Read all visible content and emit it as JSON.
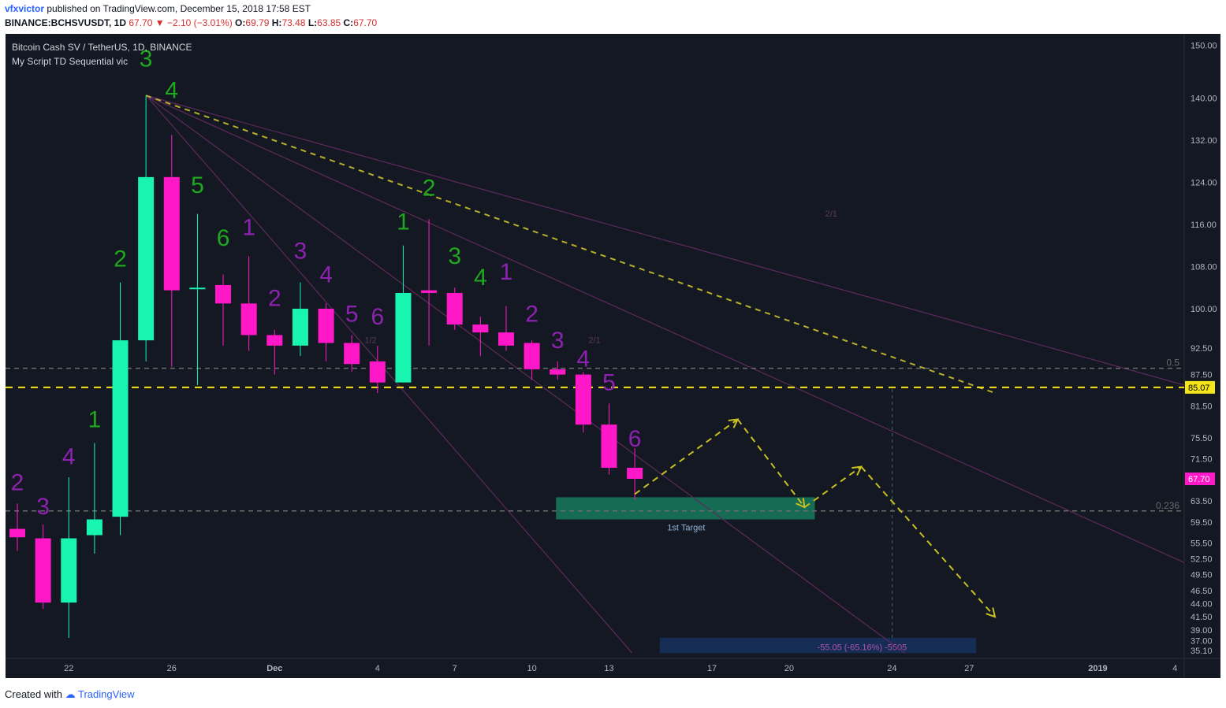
{
  "header": {
    "username": "vfxvictor",
    "published_text": "published on TradingView.com, December 15, 2018 17:58 EST",
    "symbol": "BINANCE:BCHSVUSDT, 1D",
    "last": "67.70",
    "change": "−2.10 (−3.01%)",
    "o_label": "O:",
    "o": "69.79",
    "h_label": "H:",
    "h": "73.48",
    "l_label": "L:",
    "l": "63.85",
    "c_label": "C:",
    "c": "67.70"
  },
  "legend": {
    "title": "Bitcoin Cash SV / TetherUS, 1D, BINANCE",
    "indicator": "My Script TD Sequential vic"
  },
  "footer": {
    "created_with": "Created with",
    "brand": "TradingView"
  },
  "colors": {
    "bg": "#141823",
    "up": "#19f5b0",
    "down": "#ff18c8",
    "td_green": "#1ea81e",
    "td_purple": "#8e22b0",
    "hline": "#f5e61a",
    "fan": "#5e2a5c"
  },
  "chart_data": {
    "type": "candlestick",
    "y_axis": {
      "range": [
        34.5,
        151.0
      ],
      "ticks": [
        "150.00",
        "140.00",
        "132.00",
        "124.00",
        "116.00",
        "108.00",
        "100.00",
        "92.50",
        "87.50",
        "81.50",
        "75.50",
        "71.50",
        "63.50",
        "59.50",
        "55.50",
        "52.50",
        "49.50",
        "46.50",
        "44.00",
        "41.50",
        "39.00",
        "37.00",
        "35.10"
      ]
    },
    "x_axis": {
      "ticks": [
        {
          "label": "22",
          "day": 22
        },
        {
          "label": "26",
          "day": 26
        },
        {
          "label": "Dec",
          "day": 30
        },
        {
          "label": "4",
          "day": 34
        },
        {
          "label": "7",
          "day": 37
        },
        {
          "label": "10",
          "day": 40
        },
        {
          "label": "13",
          "day": 43
        },
        {
          "label": "17",
          "day": 47
        },
        {
          "label": "20",
          "day": 50
        },
        {
          "label": "24",
          "day": 54
        },
        {
          "label": "27",
          "day": 57
        },
        {
          "label": "2019",
          "day": 62
        },
        {
          "label": "4",
          "day": 65
        }
      ]
    },
    "candles": [
      {
        "day": 20,
        "o": 58.2,
        "h": 63.0,
        "l": 54.0,
        "c": 56.6
      },
      {
        "day": 21,
        "o": 56.4,
        "h": 59.0,
        "l": 43.0,
        "c": 44.2
      },
      {
        "day": 22,
        "o": 44.2,
        "h": 68.0,
        "l": 37.5,
        "c": 56.4
      },
      {
        "day": 23,
        "o": 57.0,
        "h": 74.5,
        "l": 53.5,
        "c": 60.0
      },
      {
        "day": 24,
        "o": 60.5,
        "h": 105.0,
        "l": 57.0,
        "c": 94.0
      },
      {
        "day": 25,
        "o": 94.0,
        "h": 140.5,
        "l": 90.0,
        "c": 125.0
      },
      {
        "day": 26,
        "o": 125.0,
        "h": 133.0,
        "l": 89.0,
        "c": 103.5
      },
      {
        "day": 27,
        "o": 104.0,
        "h": 118.0,
        "l": 85.5,
        "c": 104.0
      },
      {
        "day": 28,
        "o": 104.5,
        "h": 106.5,
        "l": 93.0,
        "c": 101.0
      },
      {
        "day": 29,
        "o": 101.0,
        "h": 110.0,
        "l": 92.0,
        "c": 95.0
      },
      {
        "day": 30,
        "o": 95.0,
        "h": 96.0,
        "l": 87.5,
        "c": 93.0
      },
      {
        "day": 31,
        "o": 93.0,
        "h": 105.0,
        "l": 91.0,
        "c": 100.0
      },
      {
        "day": 32,
        "o": 100.0,
        "h": 101.0,
        "l": 90.0,
        "c": 93.5
      },
      {
        "day": 33,
        "o": 93.5,
        "h": 95.0,
        "l": 88.0,
        "c": 89.5
      },
      {
        "day": 34,
        "o": 90.0,
        "h": 93.0,
        "l": 84.0,
        "c": 86.0
      },
      {
        "day": 35,
        "o": 86.0,
        "h": 112.0,
        "l": 86.0,
        "c": 103.0
      },
      {
        "day": 36,
        "o": 103.5,
        "h": 117.0,
        "l": 93.0,
        "c": 103.0
      },
      {
        "day": 37,
        "o": 103.0,
        "h": 104.0,
        "l": 96.0,
        "c": 97.0
      },
      {
        "day": 38,
        "o": 97.0,
        "h": 98.5,
        "l": 91.0,
        "c": 95.5
      },
      {
        "day": 39,
        "o": 95.5,
        "h": 100.5,
        "l": 92.0,
        "c": 93.0
      },
      {
        "day": 40,
        "o": 93.5,
        "h": 94.0,
        "l": 86.5,
        "c": 88.5
      },
      {
        "day": 41,
        "o": 88.5,
        "h": 90.0,
        "l": 86.5,
        "c": 87.5
      },
      {
        "day": 42,
        "o": 87.5,
        "h": 88.0,
        "l": 76.5,
        "c": 78.0
      },
      {
        "day": 43,
        "o": 78.0,
        "h": 82.0,
        "l": 68.5,
        "c": 69.8
      },
      {
        "day": 44,
        "o": 69.8,
        "h": 73.5,
        "l": 63.8,
        "c": 67.7
      }
    ],
    "td_counts": [
      {
        "day": 20,
        "n": "2",
        "color": "purple",
        "y": 65.5
      },
      {
        "day": 21,
        "n": "3",
        "color": "purple",
        "y": 61.0
      },
      {
        "day": 22,
        "n": "4",
        "color": "purple",
        "y": 70.5
      },
      {
        "day": 23,
        "n": "1",
        "color": "green",
        "y": 77.5
      },
      {
        "day": 24,
        "n": "2",
        "color": "green",
        "y": 108.0
      },
      {
        "day": 25,
        "n": "3",
        "color": "green",
        "y": 146.0
      },
      {
        "day": 26,
        "n": "4",
        "color": "green",
        "y": 140.0
      },
      {
        "day": 27,
        "n": "5",
        "color": "green",
        "y": 122.0
      },
      {
        "day": 28,
        "n": "6",
        "color": "green",
        "y": 112.0
      },
      {
        "day": 29,
        "n": "1",
        "color": "purple",
        "y": 114.0
      },
      {
        "day": 30,
        "n": "2",
        "color": "purple",
        "y": 100.5
      },
      {
        "day": 31,
        "n": "3",
        "color": "purple",
        "y": 109.5
      },
      {
        "day": 32,
        "n": "4",
        "color": "purple",
        "y": 105.0
      },
      {
        "day": 33,
        "n": "5",
        "color": "purple",
        "y": 97.5
      },
      {
        "day": 34,
        "n": "6",
        "color": "purple",
        "y": 97.0
      },
      {
        "day": 35,
        "n": "1",
        "color": "green",
        "y": 115.0
      },
      {
        "day": 36,
        "n": "2",
        "color": "green",
        "y": 121.5
      },
      {
        "day": 37,
        "n": "3",
        "color": "green",
        "y": 108.5
      },
      {
        "day": 38,
        "n": "4",
        "color": "green",
        "y": 104.5
      },
      {
        "day": 39,
        "n": "1",
        "color": "purple",
        "y": 105.5
      },
      {
        "day": 40,
        "n": "2",
        "color": "purple",
        "y": 97.5
      },
      {
        "day": 41,
        "n": "3",
        "color": "purple",
        "y": 92.5
      },
      {
        "day": 42,
        "n": "4",
        "color": "purple",
        "y": 89.0
      },
      {
        "day": 43,
        "n": "5",
        "color": "purple",
        "y": 84.5
      },
      {
        "day": 44,
        "n": "6",
        "color": "purple",
        "y": 73.8
      }
    ],
    "horizontal_lines": [
      {
        "price": 85.07,
        "label": "85.07",
        "style": "dashed",
        "color": "#f5e61a"
      },
      {
        "price": 88.7,
        "label": "0.5",
        "style": "dashed",
        "color": "#6b6b6b"
      },
      {
        "price": 61.6,
        "label": "0.236",
        "style": "dashed",
        "color": "#6b6b6b"
      }
    ],
    "target_zone": {
      "day_from": 41,
      "day_to": 51,
      "price_from": 60.0,
      "price_to": 64.2,
      "label": "1st Target"
    },
    "measure_box": {
      "day_from": 45,
      "day_to": 57.3,
      "price_from": 34.6,
      "price_to": 37.5,
      "label": "-55.05 (-65.16%) -5505"
    },
    "fan_labels": [
      {
        "text": "2/1",
        "day": 51.4,
        "price": 117.5
      },
      {
        "text": "1/2",
        "day": 33.5,
        "price": 93.5
      },
      {
        "text": "2/1",
        "day": 42.2,
        "price": 93.5
      }
    ],
    "fan_lines": [
      {
        "from": [
          25,
          140.5
        ],
        "to": [
          66,
          85.5
        ]
      },
      {
        "from": [
          25,
          140.5
        ],
        "to": [
          66,
          51.8
        ]
      },
      {
        "from": [
          25,
          140.5
        ],
        "to": [
          54.5,
          34.6
        ]
      },
      {
        "from": [
          25,
          140.5
        ],
        "to": [
          43.9,
          34.6
        ]
      }
    ],
    "trend_dashed": {
      "from": [
        25,
        140.5
      ],
      "to": [
        58,
        84.0
      ]
    },
    "projection_path": [
      [
        44,
        64.8
      ],
      [
        48,
        79.0
      ],
      [
        50.6,
        62.3
      ],
      [
        52.8,
        70.0
      ],
      [
        58,
        41.5
      ]
    ],
    "last_price_label": "67.70"
  }
}
